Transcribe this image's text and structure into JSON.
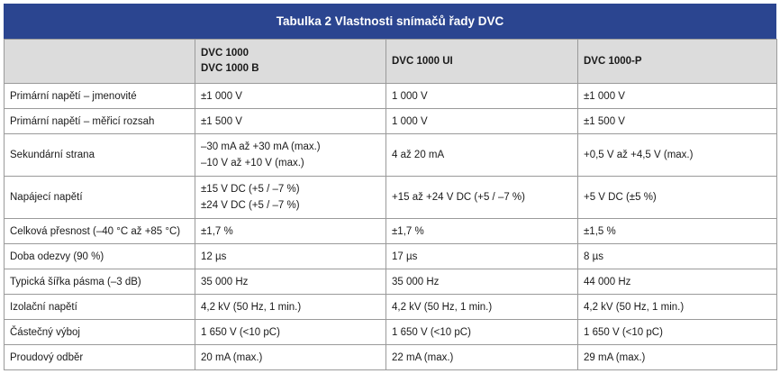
{
  "title": "Tabulka 2  Vlastnosti snímačů řady DVC",
  "columns": [
    {
      "lines": []
    },
    {
      "lines": [
        "DVC 1000",
        "DVC 1000 B"
      ]
    },
    {
      "lines": [
        "DVC 1000 UI"
      ]
    },
    {
      "lines": [
        "DVC 1000-P"
      ]
    }
  ],
  "rows": [
    {
      "label": "Primární napětí – jmenovité",
      "cells": [
        [
          "±1 000 V"
        ],
        [
          "1 000 V"
        ],
        [
          "±1 000 V"
        ]
      ]
    },
    {
      "label": "Primární napětí – měřicí rozsah",
      "cells": [
        [
          "±1 500 V"
        ],
        [
          "1 000 V"
        ],
        [
          "±1 500 V"
        ]
      ]
    },
    {
      "label": "Sekundární strana",
      "cells": [
        [
          "–30 mA až +30 mA (max.)",
          "–10 V až +10 V (max.)"
        ],
        [
          "4 až 20 mA"
        ],
        [
          "+0,5 V až +4,5 V (max.)"
        ]
      ]
    },
    {
      "label": "Napájecí napětí",
      "cells": [
        [
          "±15 V DC (+5 / –7 %)",
          "±24 V DC (+5 / –7 %)"
        ],
        [
          "+15 až +24 V DC (+5 / –7 %)"
        ],
        [
          "+5 V DC (±5 %)"
        ]
      ]
    },
    {
      "label": "Celková přesnost (–40 °C až +85 °C)",
      "cells": [
        [
          "±1,7 %"
        ],
        [
          "±1,7 %"
        ],
        [
          "±1,5 %"
        ]
      ]
    },
    {
      "label": "Doba odezvy (90 %)",
      "cells": [
        [
          "12 µs"
        ],
        [
          "17 µs"
        ],
        [
          "8 µs"
        ]
      ]
    },
    {
      "label": "Typická šířka pásma (–3 dB)",
      "cells": [
        [
          "35 000 Hz"
        ],
        [
          "35 000 Hz"
        ],
        [
          "44 000 Hz"
        ]
      ]
    },
    {
      "label": "Izolační napětí",
      "cells": [
        [
          "4,2 kV (50 Hz, 1 min.)"
        ],
        [
          "4,2 kV (50 Hz, 1 min.)"
        ],
        [
          "4,2 kV (50 Hz, 1 min.)"
        ]
      ]
    },
    {
      "label": "Částečný výboj",
      "cells": [
        [
          "1 650 V (<10 pC)"
        ],
        [
          "1 650 V (<10 pC)"
        ],
        [
          "1 650 V (<10 pC)"
        ]
      ]
    },
    {
      "label": "Proudový odběr",
      "cells": [
        [
          "20 mA (max.)"
        ],
        [
          "22 mA (max.)"
        ],
        [
          "29 mA (max.)"
        ]
      ]
    }
  ]
}
